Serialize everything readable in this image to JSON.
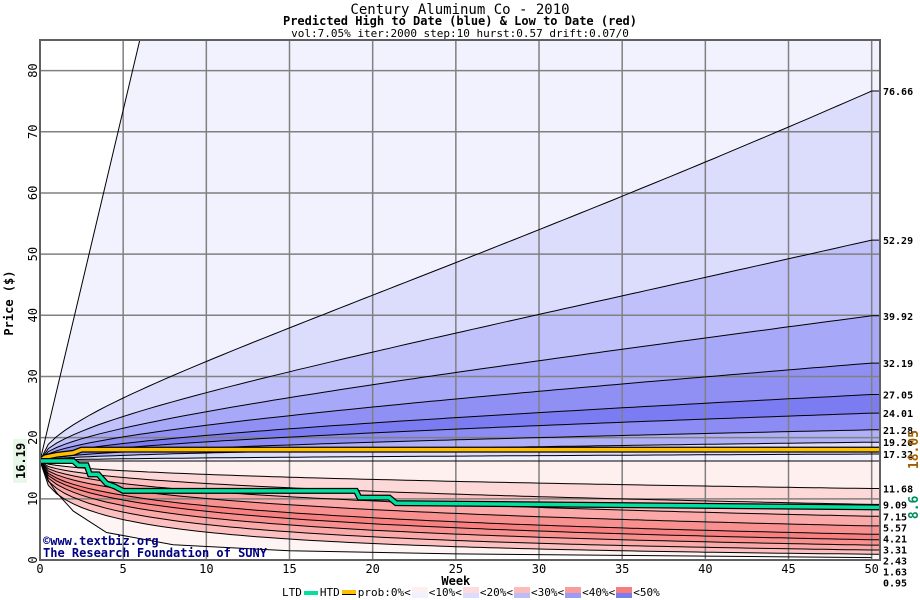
{
  "chart_data": {
    "type": "area",
    "title": "Century Aluminum Co - 2010",
    "subtitle": "Predicted High to Date (blue) &  Low to Date (red)",
    "params": "vol:7.05% iter:2000 step:10 hurst:0.57 drift:0.07/0",
    "xlabel": "Week",
    "ylabel": "Price ($)",
    "xlim": [
      0,
      50.5
    ],
    "ylim": [
      0,
      85
    ],
    "xticks": [
      0,
      5,
      10,
      15,
      20,
      25,
      30,
      35,
      40,
      45,
      50
    ],
    "yticks": [
      0,
      10,
      20,
      30,
      40,
      50,
      60,
      70,
      80
    ],
    "grid": true,
    "start_price": "16.19",
    "upper_quantiles": [
      "76.66",
      "52.29",
      "39.92",
      "32.19",
      "27.05",
      "24.01",
      "21.28",
      "19.26",
      "17.32"
    ],
    "lower_quantiles": [
      "11.68",
      "9.09",
      "7.15",
      "5.57",
      "4.21",
      "3.31",
      "2.43",
      "1.63",
      "0.95"
    ],
    "max_line": [
      [
        0,
        16.19
      ],
      [
        6,
        85
      ]
    ],
    "min_line": [
      [
        0,
        16.19
      ],
      [
        0.5,
        13
      ],
      [
        1,
        11
      ],
      [
        2,
        8
      ],
      [
        4,
        4.5
      ],
      [
        8,
        2.5
      ],
      [
        15,
        1.5
      ],
      [
        25,
        1
      ],
      [
        50,
        0.4
      ]
    ],
    "htd": {
      "name": "HTD",
      "color": "#ffc000",
      "final": "18.05",
      "points": [
        [
          0,
          16.19
        ],
        [
          0.3,
          16.8
        ],
        [
          1,
          17.2
        ],
        [
          2,
          17.5
        ],
        [
          2.5,
          18.05
        ],
        [
          50.5,
          18.05
        ]
      ]
    },
    "ltd": {
      "name": "LTD",
      "color": "#00e0a0",
      "final": "8.6",
      "points": [
        [
          0,
          16.19
        ],
        [
          2,
          16.19
        ],
        [
          2.3,
          15.5
        ],
        [
          2.8,
          15.5
        ],
        [
          3,
          14
        ],
        [
          3.5,
          14
        ],
        [
          4,
          12.5
        ],
        [
          4.5,
          12
        ],
        [
          5,
          11.3
        ],
        [
          19,
          11.3
        ],
        [
          19.2,
          10.2
        ],
        [
          21,
          10.2
        ],
        [
          21.4,
          9.3
        ],
        [
          50.5,
          8.6
        ]
      ]
    },
    "legend": {
      "ltd": "LTD",
      "htd": "HTD",
      "prob": "prob:0%<",
      "bins": [
        "<10%<",
        "<20%<",
        "<30%<",
        "<40%<",
        "<50%"
      ]
    },
    "watermark": [
      "©www.textbiz.org",
      "The Research Foundation of SUNY"
    ]
  }
}
